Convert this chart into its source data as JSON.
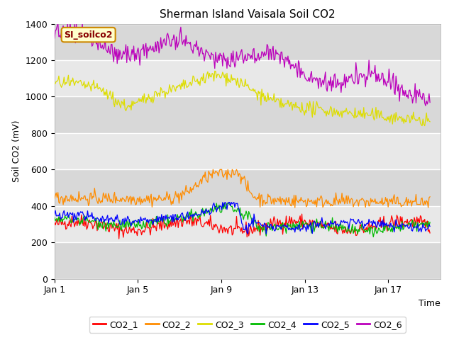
{
  "title": "Sherman Island Vaisala Soil CO2",
  "xlabel": "Time",
  "ylabel": "Soil CO2 (mV)",
  "ylim": [
    0,
    1400
  ],
  "xlim_days": [
    0,
    18.5
  ],
  "xtick_positions": [
    0,
    4,
    8,
    12,
    16
  ],
  "xtick_labels": [
    "Jan 1",
    "Jan 5",
    "Jan 9",
    "Jan 13",
    "Jan 17"
  ],
  "ytick_positions": [
    0,
    200,
    400,
    600,
    800,
    1000,
    1200,
    1400
  ],
  "legend_labels": [
    "CO2_1",
    "CO2_2",
    "CO2_3",
    "CO2_4",
    "CO2_5",
    "CO2_6"
  ],
  "line_colors": [
    "#ff0000",
    "#ff8c00",
    "#dddd00",
    "#00bb00",
    "#0000ff",
    "#bb00bb"
  ],
  "watermark_text": "SI_soilco2",
  "watermark_bg": "#ffffcc",
  "watermark_border": "#cc8800",
  "watermark_text_color": "#880000",
  "background_color": "#ffffff",
  "plot_bg_color": "#f0f0f0",
  "n_points": 432,
  "days": 18,
  "band_dark": "#d8d8d8",
  "band_light": "#e8e8e8"
}
